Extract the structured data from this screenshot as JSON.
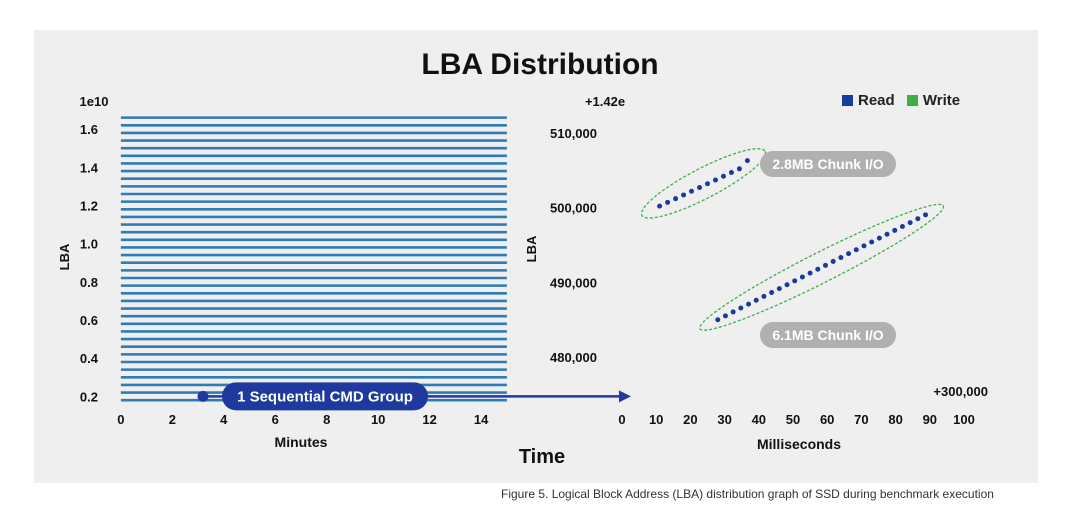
{
  "title": "LBA Distribution",
  "caption": "Figure 5. Logical Block Address (LBA) distribution graph of SSD during benchmark execution",
  "shared_xlabel": "Time",
  "legend": [
    {
      "label": "Read",
      "color": "#1a3a9c"
    },
    {
      "label": "Write",
      "color": "#3fae49"
    }
  ],
  "colors": {
    "line": "#2e7bb5",
    "read": "#1a3a9c",
    "ellipse": "#3fae49",
    "arrow": "#1e3a9e",
    "callout": "#b0b0b0",
    "panel": "#efefef"
  },
  "chart_data": [
    {
      "type": "line",
      "title": "",
      "xlabel": "Minutes",
      "ylabel": "LBA",
      "y_multiplier_label": "1e10",
      "xlim": [
        -0.5,
        15.2
      ],
      "ylim": [
        0.16,
        1.7
      ],
      "x_ticks": [
        0,
        2,
        4,
        6,
        8,
        10,
        12,
        14
      ],
      "y_ticks": [
        0.2,
        0.4,
        0.6,
        0.8,
        1.0,
        1.2,
        1.4,
        1.6
      ],
      "y_tick_labels": [
        "0.2",
        "0.4",
        "0.6",
        "0.8",
        "1.0",
        "1.2",
        "1.4",
        "1.6"
      ],
      "horizontal_lines_x_range": [
        0,
        15
      ],
      "horizontal_lines_y": [
        0.18,
        0.22,
        0.26,
        0.3,
        0.34,
        0.38,
        0.42,
        0.46,
        0.5,
        0.54,
        0.58,
        0.62,
        0.66,
        0.7,
        0.74,
        0.78,
        0.82,
        0.86,
        0.9,
        0.94,
        0.98,
        1.02,
        1.06,
        1.1,
        1.14,
        1.18,
        1.22,
        1.26,
        1.3,
        1.34,
        1.38,
        1.42,
        1.46,
        1.5,
        1.54,
        1.58,
        1.62,
        1.66
      ],
      "annotation": "1 Sequential CMD Group",
      "grid": false
    },
    {
      "type": "scatter",
      "title": "",
      "xlabel": "Milliseconds",
      "ylabel": "LBA",
      "y_offset_label": "+1.42e",
      "x_offset_label": "+300,000",
      "xlim": [
        0,
        100
      ],
      "ylim": [
        478000,
        512000
      ],
      "x_ticks": [
        0,
        10,
        20,
        30,
        40,
        50,
        60,
        70,
        80,
        90,
        100
      ],
      "y_ticks": [
        480000,
        490000,
        500000,
        510000
      ],
      "y_tick_labels": [
        "480,000",
        "490,000",
        "500,000",
        "510,000"
      ],
      "series": [
        {
          "name": "Read",
          "x": [
            11,
            13.33,
            15.67,
            18,
            20.33,
            22.67,
            25,
            27.33,
            29.67,
            32,
            34.33,
            36.67
          ],
          "y": [
            500200,
            500700,
            501200,
            501700,
            502200,
            502700,
            503200,
            503700,
            504200,
            504700,
            505200,
            506300
          ]
        },
        {
          "name": "Read",
          "x": [
            28,
            30.25,
            32.5,
            34.75,
            37,
            39.25,
            41.5,
            43.75,
            46,
            48.25,
            50.5,
            52.75,
            55,
            57.25,
            59.5,
            61.75,
            64,
            66.25,
            68.5,
            70.75,
            73,
            75.25,
            77.5,
            79.75,
            82,
            84.25,
            86.5,
            88.75
          ],
          "y": [
            485000,
            485520,
            486040,
            486560,
            487080,
            487600,
            488120,
            488640,
            489160,
            489680,
            490200,
            490720,
            491240,
            491760,
            492280,
            492800,
            493320,
            493840,
            494360,
            494880,
            495400,
            495920,
            496440,
            496960,
            497480,
            498000,
            498520,
            499040
          ]
        }
      ],
      "annotations": [
        "2.8MB Chunk I/O",
        "6.1MB Chunk I/O"
      ],
      "grid": false
    }
  ]
}
